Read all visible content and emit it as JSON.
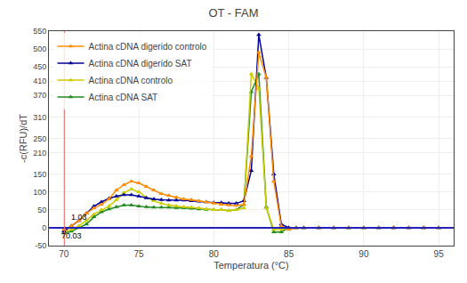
{
  "chart_data": {
    "type": "line",
    "title": "OT - FAM",
    "x_label": "Temperatura (°C)",
    "y_label": "-c(RFU)/dT",
    "xlim": [
      69.0,
      96.0
    ],
    "ylim": [
      -50,
      550
    ],
    "xticks": [
      70,
      75,
      80,
      85,
      90,
      95
    ],
    "yticks": [
      -50,
      0,
      50,
      100,
      150,
      210,
      250,
      310,
      370,
      410,
      450,
      500,
      550
    ],
    "grid": true,
    "legend": "upper left",
    "x": [
      70.0,
      70.5,
      71.0,
      71.5,
      72.0,
      72.5,
      73.0,
      73.5,
      74.0,
      74.5,
      75.0,
      75.5,
      76.0,
      76.5,
      77.0,
      77.5,
      78.0,
      78.5,
      79.0,
      79.5,
      80.0,
      80.5,
      81.0,
      81.5,
      82.0,
      82.5,
      83.0,
      83.5,
      84.0,
      84.5,
      85.0,
      85.5,
      86.0,
      87.0,
      88.0,
      89.0,
      90.0,
      91.0,
      92.0,
      93.0,
      94.0,
      95.0
    ],
    "series": [
      {
        "name": "Actina cDNA digerido controlo",
        "color": "#ff8c00",
        "marker": "triangle-up",
        "values": [
          -5,
          5,
          20,
          40,
          55,
          65,
          80,
          105,
          120,
          130,
          125,
          115,
          105,
          95,
          90,
          85,
          80,
          78,
          75,
          72,
          68,
          65,
          63,
          62,
          65,
          200,
          490,
          420,
          130,
          5,
          -5,
          0,
          0,
          0,
          0,
          0,
          0,
          0,
          0,
          0,
          0,
          0
        ]
      },
      {
        "name": "Actina cDNA digerido SAT",
        "color": "#000099",
        "marker": "triangle-up",
        "values": [
          -10,
          5,
          20,
          40,
          60,
          72,
          82,
          88,
          92,
          92,
          88,
          83,
          80,
          78,
          77,
          77,
          77,
          75,
          74,
          72,
          70,
          70,
          68,
          68,
          75,
          160,
          540,
          420,
          150,
          10,
          0,
          0,
          0,
          0,
          0,
          0,
          0,
          0,
          0,
          0,
          0,
          0
        ]
      },
      {
        "name": "Actina cDNA controlo",
        "color": "#cccc00",
        "marker": "triangle-up",
        "values": [
          -10,
          -5,
          5,
          20,
          38,
          50,
          60,
          78,
          98,
          108,
          100,
          85,
          75,
          68,
          63,
          61,
          58,
          57,
          55,
          52,
          50,
          50,
          48,
          50,
          55,
          430,
          390,
          55,
          -5,
          -5,
          0,
          0,
          0,
          0,
          0,
          0,
          0,
          0,
          0,
          0,
          0,
          0
        ]
      },
      {
        "name": "Actina cDNA SAT",
        "color": "#228b22",
        "marker": "triangle-up",
        "values": [
          -15,
          -10,
          0,
          10,
          30,
          44,
          52,
          58,
          63,
          63,
          60,
          58,
          57,
          57,
          57,
          56,
          55,
          54,
          52,
          51,
          50,
          50,
          48,
          50,
          65,
          380,
          430,
          58,
          -12,
          -12,
          0,
          0,
          0,
          0,
          0,
          0,
          0,
          0,
          0,
          0,
          0,
          0
        ]
      }
    ],
    "reference_lines": {
      "vertical": {
        "x": 70.03,
        "color": "#e87070"
      },
      "horizontal": {
        "y": 0,
        "color": "#2222bb"
      }
    },
    "annotations": [
      {
        "text": "1.03",
        "x": 70.35,
        "y": 12
      },
      {
        "text": "70.03",
        "x": 69.7,
        "y": -40
      }
    ]
  }
}
